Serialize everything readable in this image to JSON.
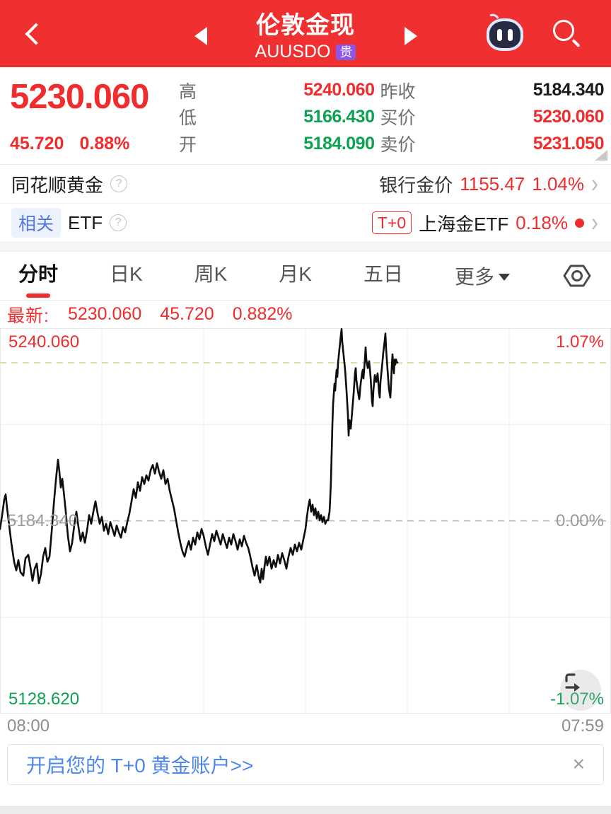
{
  "colors": {
    "header_red": "#f02f31",
    "up_red": "#f12c2c",
    "down_green": "#0ba352",
    "badge_purple": "#8d55e8",
    "related_blue": "#5577e6",
    "banner_blue": "#4f86ec"
  },
  "icons": {
    "help": "?",
    "chevron_right": "›",
    "close": "×"
  },
  "header": {
    "title": "伦敦金现",
    "symbol": "AUUSDO",
    "badge": "贵"
  },
  "quote": {
    "price": "5230.060",
    "change": "45.720",
    "change_pct": "0.88%",
    "stats": [
      {
        "label": "高",
        "value": "5240.060"
      },
      {
        "label": "昨收",
        "value": "5184.340"
      },
      {
        "label": "低",
        "value": "5166.430"
      },
      {
        "label": "买价",
        "value": "5230.060"
      },
      {
        "label": "开",
        "value": "5184.090"
      },
      {
        "label": "卖价",
        "value": "5231.050"
      }
    ]
  },
  "ths_row": {
    "left": "同花顺黄金",
    "right_label": "银行金价",
    "right_value": "1155.47",
    "right_pct": "1.04%"
  },
  "etf_row": {
    "badge": "相关",
    "label": "ETF",
    "tplus": "T+0",
    "name": "上海金ETF",
    "pct": "0.18%"
  },
  "tabs": {
    "items": [
      "分时",
      "日K",
      "周K",
      "月K",
      "五日"
    ],
    "more": "更多"
  },
  "latest": {
    "label": "最新:",
    "price": "5230.060",
    "change": "45.720",
    "pct": "0.882%"
  },
  "banner": {
    "text": "开启您的 T+0 黄金账户>>"
  },
  "chart_data": {
    "type": "line",
    "title": "分时 intraday price line",
    "x_axis": {
      "start": "08:00",
      "end": "07:59"
    },
    "ylim": [
      5128.62,
      5240.06
    ],
    "prev_close": 5184.34,
    "current_price": 5230.06,
    "grid": {
      "vertical_divisions": 6,
      "quarter_lines": [
        0.25,
        0.75
      ],
      "legend": "none"
    },
    "labels": {
      "top_price": "5240.060",
      "top_pct": "1.07%",
      "mid_price": "5184.340",
      "mid_pct": "0.00%",
      "bottom_price": "5128.620",
      "bottom_pct": "-1.07%"
    },
    "points": [
      [
        0,
        5182
      ],
      [
        3,
        5186
      ],
      [
        6,
        5190.5
      ],
      [
        8,
        5192
      ],
      [
        10,
        5188
      ],
      [
        13,
        5183
      ],
      [
        16,
        5178
      ],
      [
        20,
        5172.5
      ],
      [
        23,
        5170
      ],
      [
        26,
        5173
      ],
      [
        29,
        5169.5
      ],
      [
        33,
        5168.5
      ],
      [
        36,
        5173.5
      ],
      [
        40,
        5174.5
      ],
      [
        43,
        5171
      ],
      [
        46,
        5167
      ],
      [
        49,
        5170.5
      ],
      [
        52,
        5172
      ],
      [
        55,
        5166.3
      ],
      [
        58,
        5169
      ],
      [
        61,
        5174
      ],
      [
        64,
        5176.5
      ],
      [
        67,
        5172.5
      ],
      [
        70,
        5174
      ],
      [
        73,
        5181
      ],
      [
        76,
        5189
      ],
      [
        79,
        5196
      ],
      [
        82,
        5202
      ],
      [
        84,
        5198.5
      ],
      [
        86,
        5194
      ],
      [
        88,
        5196.5
      ],
      [
        90,
        5193
      ],
      [
        93,
        5187
      ],
      [
        96,
        5180
      ],
      [
        99,
        5175.5
      ],
      [
        102,
        5178
      ],
      [
        105,
        5183
      ],
      [
        108,
        5187
      ],
      [
        111,
        5182.5
      ],
      [
        114,
        5178.5
      ],
      [
        117,
        5181
      ],
      [
        120,
        5178
      ],
      [
        123,
        5181.5
      ],
      [
        126,
        5186
      ],
      [
        129,
        5183.5
      ],
      [
        132,
        5187
      ],
      [
        135,
        5190
      ],
      [
        138,
        5186.5
      ],
      [
        141,
        5183.5
      ],
      [
        144,
        5185.5
      ],
      [
        147,
        5181.5
      ],
      [
        150,
        5183.5
      ],
      [
        153,
        5180.5
      ],
      [
        156,
        5184
      ],
      [
        159,
        5182
      ],
      [
        162,
        5180
      ],
      [
        165,
        5183
      ],
      [
        168,
        5181
      ],
      [
        171,
        5179.5
      ],
      [
        174,
        5182.5
      ],
      [
        177,
        5181
      ],
      [
        180,
        5184
      ],
      [
        183,
        5186.5
      ],
      [
        186,
        5190
      ],
      [
        189,
        5193.5
      ],
      [
        192,
        5191
      ],
      [
        195,
        5195.5
      ],
      [
        198,
        5193
      ],
      [
        201,
        5197
      ],
      [
        204,
        5195
      ],
      [
        207,
        5197.5
      ],
      [
        210,
        5196
      ],
      [
        213,
        5199
      ],
      [
        216,
        5200.5
      ],
      [
        219,
        5198
      ],
      [
        222,
        5201
      ],
      [
        225,
        5198.5
      ],
      [
        228,
        5196.5
      ],
      [
        231,
        5199
      ],
      [
        234,
        5195
      ],
      [
        237,
        5196.5
      ],
      [
        240,
        5193
      ],
      [
        243,
        5190.5
      ],
      [
        246,
        5188
      ],
      [
        249,
        5184.5
      ],
      [
        252,
        5181
      ],
      [
        255,
        5178
      ],
      [
        258,
        5175.5
      ],
      [
        261,
        5174
      ],
      [
        264,
        5176.5
      ],
      [
        267,
        5178.5
      ],
      [
        270,
        5176
      ],
      [
        273,
        5179.5
      ],
      [
        276,
        5177.5
      ],
      [
        279,
        5181
      ],
      [
        282,
        5179
      ],
      [
        285,
        5182
      ],
      [
        288,
        5180
      ],
      [
        291,
        5177
      ],
      [
        294,
        5174.5
      ],
      [
        297,
        5177.5
      ],
      [
        300,
        5180.5
      ],
      [
        303,
        5178.5
      ],
      [
        306,
        5181.5
      ],
      [
        309,
        5179.5
      ],
      [
        312,
        5177.5
      ],
      [
        315,
        5180.5
      ],
      [
        318,
        5178.5
      ],
      [
        321,
        5176.5
      ],
      [
        324,
        5179.5
      ],
      [
        327,
        5177.5
      ],
      [
        330,
        5180.5
      ],
      [
        333,
        5178.5
      ],
      [
        336,
        5176
      ],
      [
        339,
        5179
      ],
      [
        342,
        5177
      ],
      [
        345,
        5180
      ],
      [
        348,
        5178
      ],
      [
        351,
        5176.5
      ],
      [
        354,
        5174
      ],
      [
        357,
        5171
      ],
      [
        360,
        5168.5
      ],
      [
        363,
        5171.5
      ],
      [
        366,
        5168
      ],
      [
        368,
        5166.5
      ],
      [
        370,
        5170.5
      ],
      [
        372,
        5167.5
      ],
      [
        374,
        5171
      ],
      [
        376,
        5174
      ],
      [
        378,
        5171.5
      ],
      [
        381,
        5174
      ],
      [
        384,
        5170.5
      ],
      [
        387,
        5173
      ],
      [
        390,
        5171
      ],
      [
        393,
        5174.5
      ],
      [
        396,
        5172
      ],
      [
        399,
        5175
      ],
      [
        402,
        5173
      ],
      [
        405,
        5170.5
      ],
      [
        408,
        5174
      ],
      [
        411,
        5176.5
      ],
      [
        414,
        5174.5
      ],
      [
        417,
        5177.5
      ],
      [
        420,
        5175.5
      ],
      [
        423,
        5178
      ],
      [
        426,
        5176
      ],
      [
        429,
        5179
      ],
      [
        432,
        5182
      ],
      [
        434,
        5185.5
      ],
      [
        436,
        5188.5
      ],
      [
        438,
        5190.5
      ],
      [
        440,
        5187
      ],
      [
        442,
        5189
      ],
      [
        444,
        5186
      ],
      [
        446,
        5188
      ],
      [
        448,
        5185
      ],
      [
        450,
        5187
      ],
      [
        452,
        5184.5
      ],
      [
        454,
        5186
      ],
      [
        456,
        5184
      ],
      [
        458,
        5185.5
      ],
      [
        460,
        5183.5
      ],
      [
        462,
        5184.5
      ],
      [
        464,
        5184.5
      ],
      [
        466,
        5187
      ],
      [
        467,
        5191
      ],
      [
        468,
        5196
      ],
      [
        469,
        5204
      ],
      [
        470,
        5212
      ],
      [
        471,
        5218
      ],
      [
        472,
        5221
      ],
      [
        473,
        5224
      ],
      [
        474,
        5222
      ],
      [
        475,
        5225.5
      ],
      [
        476,
        5228
      ],
      [
        477,
        5226
      ],
      [
        478,
        5230
      ],
      [
        480,
        5234
      ],
      [
        482,
        5238
      ],
      [
        483,
        5239.8
      ],
      [
        484,
        5236
      ],
      [
        486,
        5232
      ],
      [
        488,
        5228
      ],
      [
        490,
        5222
      ],
      [
        492,
        5215
      ],
      [
        493,
        5209
      ],
      [
        494,
        5213.5
      ],
      [
        496,
        5211
      ],
      [
        498,
        5216
      ],
      [
        500,
        5221
      ],
      [
        502,
        5227
      ],
      [
        503,
        5228.5
      ],
      [
        504,
        5225
      ],
      [
        506,
        5222
      ],
      [
        508,
        5219.5
      ],
      [
        510,
        5224
      ],
      [
        512,
        5227
      ],
      [
        513,
        5228
      ],
      [
        514,
        5225.5
      ],
      [
        516,
        5231
      ],
      [
        517,
        5234.5
      ],
      [
        518,
        5231
      ],
      [
        520,
        5228.5
      ],
      [
        522,
        5230.5
      ],
      [
        524,
        5226
      ],
      [
        526,
        5219
      ],
      [
        527,
        5217.5
      ],
      [
        528,
        5222
      ],
      [
        530,
        5226.5
      ],
      [
        532,
        5224.5
      ],
      [
        534,
        5227
      ],
      [
        536,
        5221.5
      ],
      [
        537,
        5220
      ],
      [
        538,
        5224.5
      ],
      [
        540,
        5228.5
      ],
      [
        542,
        5233
      ],
      [
        544,
        5236.5
      ],
      [
        545,
        5238.5
      ],
      [
        546,
        5234
      ],
      [
        548,
        5228
      ],
      [
        550,
        5222.5
      ],
      [
        552,
        5220
      ],
      [
        553,
        5224
      ],
      [
        554,
        5229
      ],
      [
        555,
        5232.5
      ],
      [
        556,
        5229.5
      ],
      [
        557,
        5227
      ],
      [
        558,
        5231
      ],
      [
        559,
        5229.5
      ],
      [
        560,
        5231
      ],
      [
        561,
        5230.3
      ],
      [
        562,
        5230.1
      ]
    ]
  }
}
